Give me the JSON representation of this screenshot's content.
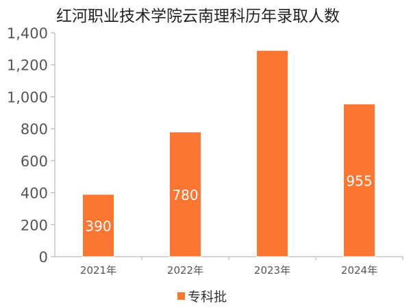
{
  "chart_data": {
    "type": "bar",
    "title": "红河职业技术学院云南理科历年录取人数",
    "categories": [
      "2021年",
      "2022年",
      "2023年",
      "2024年"
    ],
    "series": [
      {
        "name": "专科批",
        "values": [
          390,
          780,
          1290,
          955
        ],
        "data_labels": [
          "390",
          "780",
          "",
          "955"
        ]
      }
    ],
    "xlabel": "",
    "ylabel": "",
    "ylim": [
      0,
      1400
    ],
    "yticks": [
      0,
      200,
      400,
      600,
      800,
      1000,
      1200,
      1400
    ],
    "ytick_labels": [
      "0",
      "200",
      "400",
      "600",
      "800",
      "1,000",
      "1,200",
      "1,400"
    ],
    "grid": false,
    "legend_position": "bottom",
    "colors": {
      "bar": "#fd7631",
      "bar_edge": "#ffffff",
      "axis": "#aaaaaa",
      "tick_text": "#555555",
      "data_label": "#ffffff"
    }
  }
}
